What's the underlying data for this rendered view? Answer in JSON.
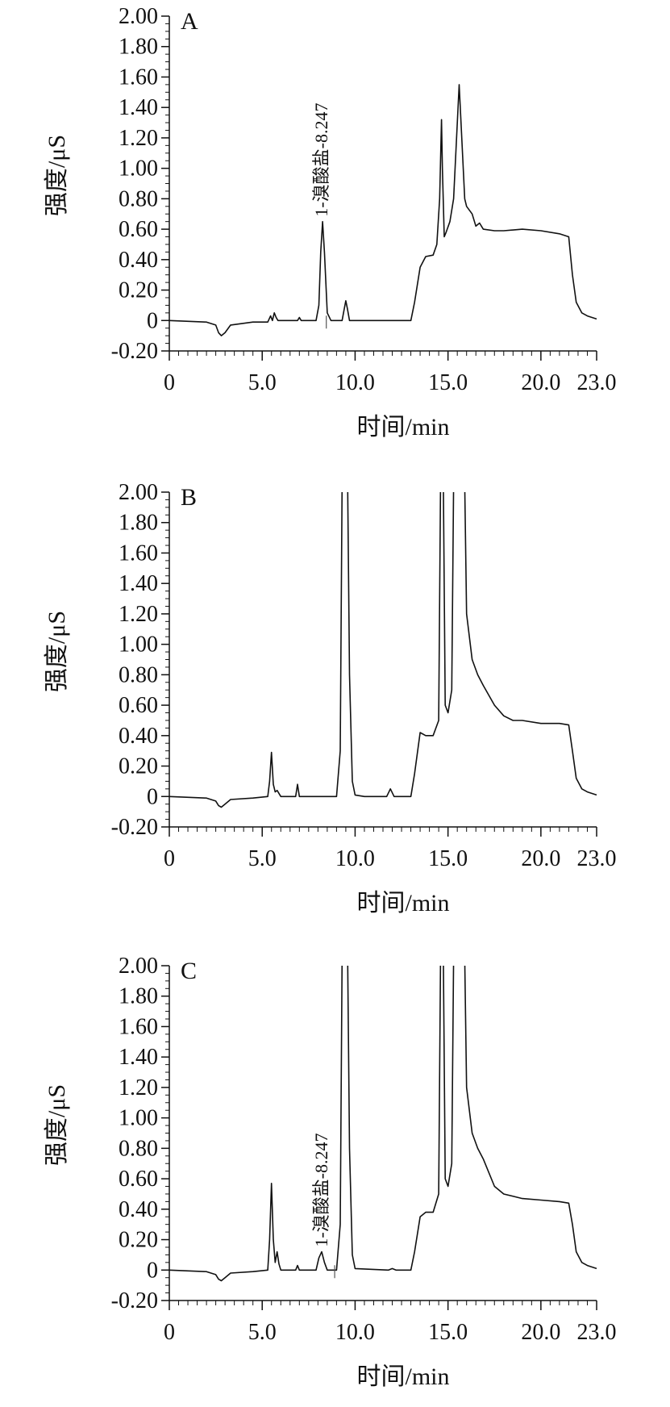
{
  "chart_data": [
    {
      "type": "line",
      "panel_label": "A",
      "xlabel": "时间/min",
      "ylabel": "强度/μS",
      "xlim": [
        0,
        23.0
      ],
      "ylim": [
        -0.2,
        2.0
      ],
      "x_tick_labels": [
        "0",
        "5.0",
        "10.0",
        "15.0",
        "20.0",
        "23.0"
      ],
      "x_tick_values": [
        0,
        5,
        10,
        15,
        20,
        23
      ],
      "y_tick_labels": [
        "2.00",
        "1.80",
        "1.60",
        "1.40",
        "1.20",
        "1.00",
        "0.80",
        "0.60",
        "0.40",
        "0.20",
        "0",
        "-0.20"
      ],
      "y_tick_values": [
        2.0,
        1.8,
        1.6,
        1.4,
        1.2,
        1.0,
        0.8,
        0.6,
        0.4,
        0.2,
        0,
        -0.2
      ],
      "annotations": [
        {
          "text": "1-溴酸盐-8.247",
          "x": 8.247,
          "y": 0.65
        }
      ],
      "peak_marker_x": 8.45,
      "series": [
        {
          "x": [
            0,
            2.0,
            2.5,
            2.65,
            2.8,
            3.0,
            3.3,
            4.5,
            5.3,
            5.45,
            5.55,
            5.65,
            5.75,
            5.85,
            6.1,
            6.9,
            7.0,
            7.1,
            7.9,
            8.05,
            8.15,
            8.25,
            8.35,
            8.5,
            8.7,
            9.3,
            9.42,
            9.5,
            9.58,
            9.7,
            10.0,
            13.0,
            13.2,
            13.5,
            13.8,
            14.2,
            14.4,
            14.55,
            14.65,
            14.7,
            14.8,
            14.9,
            15.1,
            15.3,
            15.5,
            15.6,
            15.7,
            15.9,
            16.0,
            16.3,
            16.5,
            16.7,
            16.9,
            17.5,
            18.0,
            19.0,
            20.0,
            21.0,
            21.5,
            21.7,
            21.9,
            22.2,
            22.5,
            23.0
          ],
          "y": [
            0,
            -0.01,
            -0.03,
            -0.08,
            -0.1,
            -0.08,
            -0.03,
            -0.01,
            -0.01,
            0.03,
            0.0,
            0.05,
            0.02,
            0.0,
            0.0,
            0.0,
            0.02,
            0.0,
            0.0,
            0.1,
            0.45,
            0.65,
            0.45,
            0.05,
            0.0,
            0.0,
            0.08,
            0.13,
            0.08,
            0.0,
            0.0,
            0.0,
            0.12,
            0.35,
            0.42,
            0.43,
            0.5,
            0.8,
            1.32,
            1.0,
            0.55,
            0.58,
            0.65,
            0.8,
            1.3,
            1.55,
            1.3,
            0.8,
            0.75,
            0.7,
            0.62,
            0.64,
            0.6,
            0.59,
            0.59,
            0.6,
            0.59,
            0.57,
            0.55,
            0.3,
            0.12,
            0.05,
            0.03,
            0.01
          ]
        }
      ]
    },
    {
      "type": "line",
      "panel_label": "B",
      "xlabel": "时间/min",
      "ylabel": "强度/μS",
      "xlim": [
        0,
        23.0
      ],
      "ylim": [
        -0.2,
        2.0
      ],
      "x_tick_labels": [
        "0",
        "5.0",
        "10.0",
        "15.0",
        "20.0",
        "23.0"
      ],
      "x_tick_values": [
        0,
        5,
        10,
        15,
        20,
        23
      ],
      "y_tick_labels": [
        "2.00",
        "1.80",
        "1.60",
        "1.40",
        "1.20",
        "1.00",
        "0.80",
        "0.60",
        "0.40",
        "0.20",
        "0",
        "-0.20"
      ],
      "y_tick_values": [
        2.0,
        1.8,
        1.6,
        1.4,
        1.2,
        1.0,
        0.8,
        0.6,
        0.4,
        0.2,
        0,
        -0.2
      ],
      "annotations": [],
      "series": [
        {
          "x": [
            0,
            2.0,
            2.5,
            2.65,
            2.8,
            3.0,
            3.3,
            4.5,
            5.3,
            5.4,
            5.5,
            5.6,
            5.7,
            5.8,
            6.0,
            6.8,
            6.9,
            7.0,
            7.1,
            7.3,
            9.0,
            9.2,
            9.3,
            9.6,
            9.7,
            9.85,
            10.0,
            10.5,
            11.7,
            11.9,
            12.1,
            13.0,
            13.2,
            13.5,
            13.8,
            14.2,
            14.5,
            14.6,
            14.75,
            14.85,
            15.0,
            15.2,
            15.3,
            15.9,
            16.0,
            16.3,
            16.6,
            16.9,
            17.5,
            18.0,
            18.5,
            19.0,
            20.0,
            21.0,
            21.5,
            21.7,
            21.9,
            22.2,
            22.5,
            23.0
          ],
          "y": [
            0,
            -0.01,
            -0.03,
            -0.06,
            -0.07,
            -0.05,
            -0.02,
            -0.01,
            0.0,
            0.1,
            0.29,
            0.08,
            0.03,
            0.04,
            0.0,
            0.0,
            0.08,
            0.0,
            0.0,
            0.0,
            0.0,
            0.3,
            2.05,
            2.05,
            0.8,
            0.1,
            0.01,
            0.0,
            0.0,
            0.05,
            0.0,
            0.0,
            0.15,
            0.42,
            0.4,
            0.4,
            0.5,
            2.05,
            2.05,
            0.6,
            0.55,
            0.7,
            2.05,
            2.05,
            1.2,
            0.9,
            0.8,
            0.73,
            0.6,
            0.53,
            0.5,
            0.5,
            0.48,
            0.48,
            0.47,
            0.3,
            0.12,
            0.05,
            0.03,
            0.01
          ]
        }
      ]
    },
    {
      "type": "line",
      "panel_label": "C",
      "xlabel": "时间/min",
      "ylabel": "强度/μS",
      "xlim": [
        0,
        23.0
      ],
      "ylim": [
        -0.2,
        2.0
      ],
      "x_tick_labels": [
        "0",
        "5.0",
        "10.0",
        "15.0",
        "20.0",
        "23.0"
      ],
      "x_tick_values": [
        0,
        5,
        10,
        15,
        20,
        23
      ],
      "y_tick_labels": [
        "2.00",
        "1.80",
        "1.60",
        "1.40",
        "1.20",
        "1.00",
        "0.80",
        "0.60",
        "0.40",
        "0.20",
        "0",
        "-0.20"
      ],
      "y_tick_values": [
        2.0,
        1.8,
        1.6,
        1.4,
        1.2,
        1.0,
        0.8,
        0.6,
        0.4,
        0.2,
        0,
        -0.2
      ],
      "annotations": [
        {
          "text": "1-溴酸盐-8.247",
          "x": 8.247,
          "y": 0.12
        }
      ],
      "peak_marker_x": 8.9,
      "series": [
        {
          "x": [
            0,
            2.0,
            2.5,
            2.65,
            2.8,
            3.0,
            3.3,
            4.5,
            5.3,
            5.4,
            5.5,
            5.6,
            5.7,
            5.8,
            5.9,
            6.0,
            6.8,
            6.9,
            7.0,
            7.1,
            7.9,
            8.05,
            8.2,
            8.35,
            8.5,
            9.0,
            9.2,
            9.3,
            9.6,
            9.7,
            9.85,
            10.0,
            11.8,
            12.0,
            12.2,
            13.0,
            13.2,
            13.5,
            13.8,
            14.2,
            14.5,
            14.6,
            14.75,
            14.85,
            15.0,
            15.2,
            15.3,
            15.9,
            16.0,
            16.3,
            16.6,
            16.9,
            17.5,
            18.0,
            19.0,
            20.0,
            21.0,
            21.5,
            21.7,
            21.9,
            22.2,
            22.5,
            23.0
          ],
          "y": [
            0,
            -0.01,
            -0.03,
            -0.06,
            -0.07,
            -0.05,
            -0.02,
            -0.01,
            0.0,
            0.2,
            0.57,
            0.2,
            0.05,
            0.12,
            0.04,
            0.0,
            0.0,
            0.03,
            0.0,
            0.0,
            0.0,
            0.08,
            0.12,
            0.05,
            0.0,
            0.0,
            0.3,
            2.05,
            2.05,
            0.8,
            0.1,
            0.01,
            0.0,
            0.01,
            0.0,
            0.0,
            0.12,
            0.35,
            0.38,
            0.38,
            0.5,
            2.05,
            2.05,
            0.6,
            0.55,
            0.7,
            2.05,
            2.05,
            1.2,
            0.9,
            0.8,
            0.73,
            0.55,
            0.5,
            0.47,
            0.46,
            0.45,
            0.44,
            0.3,
            0.12,
            0.05,
            0.03,
            0.01
          ]
        }
      ]
    }
  ]
}
